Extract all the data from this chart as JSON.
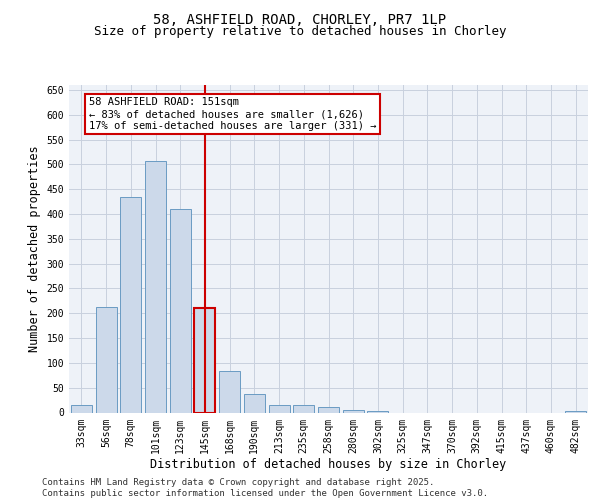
{
  "title_line1": "58, ASHFIELD ROAD, CHORLEY, PR7 1LP",
  "title_line2": "Size of property relative to detached houses in Chorley",
  "xlabel": "Distribution of detached houses by size in Chorley",
  "ylabel": "Number of detached properties",
  "categories": [
    "33sqm",
    "56sqm",
    "78sqm",
    "101sqm",
    "123sqm",
    "145sqm",
    "168sqm",
    "190sqm",
    "213sqm",
    "235sqm",
    "258sqm",
    "280sqm",
    "302sqm",
    "325sqm",
    "347sqm",
    "370sqm",
    "392sqm",
    "415sqm",
    "437sqm",
    "460sqm",
    "482sqm"
  ],
  "values": [
    15,
    213,
    435,
    507,
    410,
    210,
    83,
    37,
    15,
    15,
    11,
    5,
    4,
    0,
    0,
    0,
    0,
    0,
    0,
    0,
    3
  ],
  "bar_color": "#ccd9ea",
  "bar_edge_color": "#6a9bc3",
  "highlight_bar_index": 5,
  "highlight_bar_color": "#ccd9ea",
  "highlight_bar_edge_color": "#cc0000",
  "vline_color": "#cc0000",
  "annotation_box_text": "58 ASHFIELD ROAD: 151sqm\n← 83% of detached houses are smaller (1,626)\n17% of semi-detached houses are larger (331) →",
  "ylim": [
    0,
    660
  ],
  "yticks": [
    0,
    50,
    100,
    150,
    200,
    250,
    300,
    350,
    400,
    450,
    500,
    550,
    600,
    650
  ],
  "grid_color": "#c8d0de",
  "background_color": "#eef2f8",
  "footer_text": "Contains HM Land Registry data © Crown copyright and database right 2025.\nContains public sector information licensed under the Open Government Licence v3.0.",
  "title_fontsize": 10,
  "subtitle_fontsize": 9,
  "tick_fontsize": 7,
  "label_fontsize": 8.5,
  "footer_fontsize": 6.5
}
